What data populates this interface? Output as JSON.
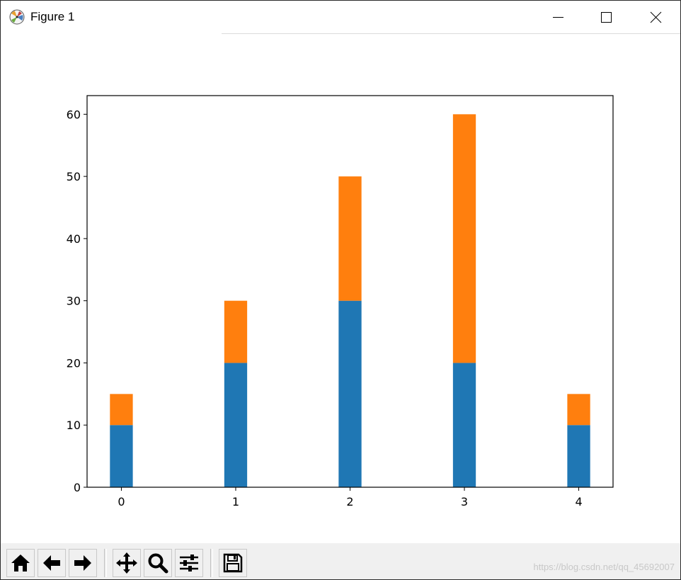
{
  "window": {
    "title": "Figure 1",
    "icons": {
      "app": "matplotlib-icon",
      "minimize": "minimize-icon",
      "maximize": "maximize-icon",
      "close": "close-icon"
    }
  },
  "toolbar": {
    "buttons": [
      {
        "name": "home-button",
        "icon": "home-icon"
      },
      {
        "name": "back-button",
        "icon": "arrow-left-icon"
      },
      {
        "name": "forward-button",
        "icon": "arrow-right-icon"
      },
      {
        "name": "pan-button",
        "icon": "move-icon"
      },
      {
        "name": "zoom-button",
        "icon": "magnifier-icon"
      },
      {
        "name": "configure-subplots-button",
        "icon": "sliders-icon"
      },
      {
        "name": "save-button",
        "icon": "floppy-disk-icon"
      }
    ],
    "watermark": "https://blog.csdn.net/qq_45692007"
  },
  "chart_data": {
    "type": "bar",
    "stacked": true,
    "categories": [
      "0",
      "1",
      "2",
      "3",
      "4"
    ],
    "series": [
      {
        "values": [
          10,
          20,
          30,
          20,
          10
        ],
        "color": "#1f77b4"
      },
      {
        "values": [
          5,
          10,
          20,
          40,
          5
        ],
        "color": "#ff7f0e"
      }
    ],
    "x_ticks": [
      "0",
      "1",
      "2",
      "3",
      "4"
    ],
    "y_ticks": [
      "0",
      "10",
      "20",
      "30",
      "40",
      "50",
      "60"
    ],
    "xlim": [
      -0.3,
      4.3
    ],
    "ylim": [
      0,
      63
    ],
    "bar_width": 0.2,
    "title": "",
    "xlabel": "",
    "ylabel": "",
    "grid": false,
    "legend": "none"
  }
}
